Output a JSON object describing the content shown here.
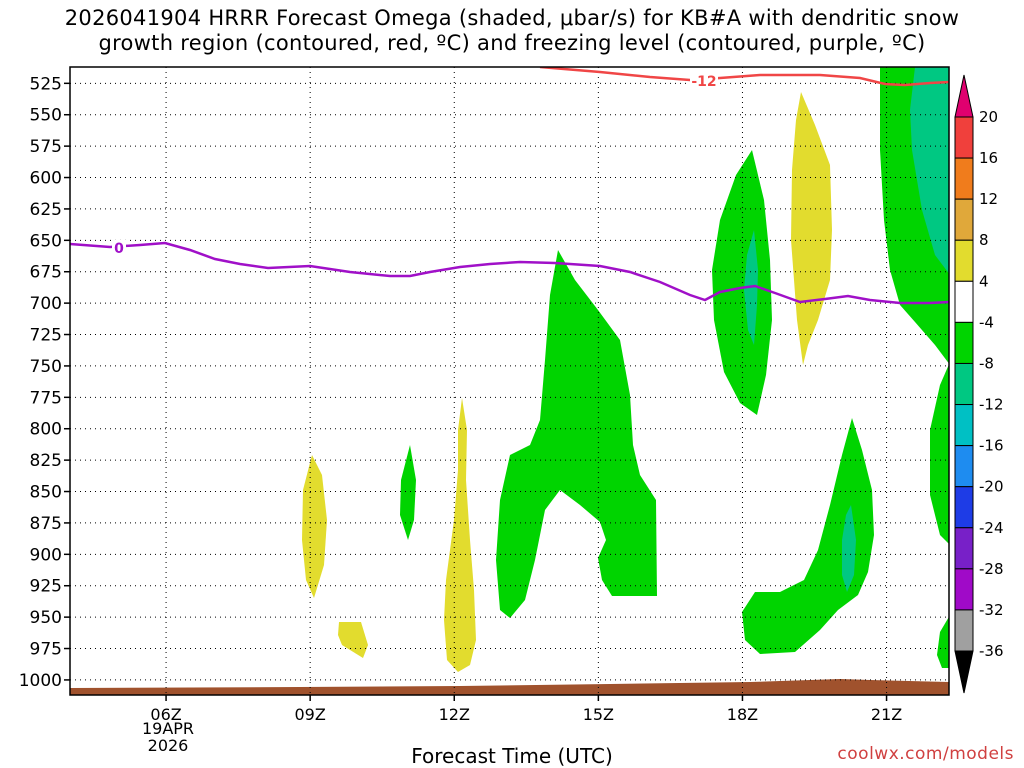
{
  "title": {
    "line1": "2026041904 HRRR Forecast Omega (shaded, μbar/s) for KB#A with dendritic snow",
    "line2": "growth region (contoured, red, ºC) and freezing level (contoured, purple, ºC)"
  },
  "x_axis_title": "Forecast Time (UTC)",
  "credit": "coolwx.com/models",
  "date_label": {
    "line1": "19APR",
    "line2": "2026"
  },
  "chart_data": {
    "type": "contour",
    "x_axis": {
      "unit": "forecast hour (UTC)",
      "range": [
        4,
        22.3
      ],
      "ticks": [
        6,
        9,
        12,
        15,
        18,
        21
      ],
      "tick_labels": [
        "06Z",
        "09Z",
        "12Z",
        "15Z",
        "18Z",
        "21Z"
      ]
    },
    "y_axis": {
      "unit": "hPa",
      "reversed": true,
      "range": [
        512,
        1012
      ],
      "ticks": [
        525,
        550,
        575,
        600,
        625,
        650,
        675,
        700,
        725,
        750,
        775,
        800,
        825,
        850,
        875,
        900,
        925,
        950,
        975,
        1000
      ]
    },
    "grid": "dotted",
    "colorbar": {
      "labels": [
        "20",
        "16",
        "12",
        "8",
        "4",
        "-4",
        "-8",
        "-12",
        "-16",
        "-20",
        "-24",
        "-28",
        "-32",
        "-36"
      ],
      "colors": [
        "#e0006f",
        "#f0403c",
        "#f07c1c",
        "#e0a83a",
        "#e2dc2e",
        "#ffffff",
        "#00d400",
        "#00c882",
        "#00c0c4",
        "#1e8cf0",
        "#1e3ce6",
        "#7820c8",
        "#a00ac8",
        "#a0a0a0",
        "#000000"
      ]
    },
    "contour_lines": [
      {
        "name": "dendritic snow growth region",
        "color": "#f04646",
        "label": "-12"
      },
      {
        "name": "freezing level",
        "color": "#a010c8",
        "label": "0"
      }
    ]
  }
}
